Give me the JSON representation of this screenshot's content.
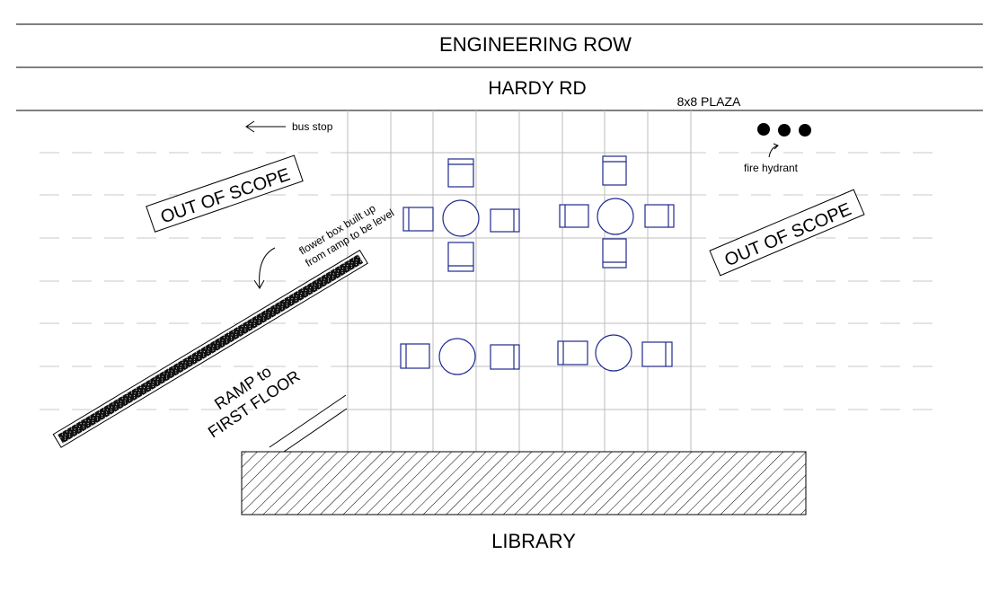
{
  "streets": {
    "top": "ENGINEERING ROW",
    "middle": "HARDY RD"
  },
  "plaza_label": "8x8 PLAZA",
  "bus_stop_label": "bus stop",
  "fire_hydrant_label": "fire hydrant",
  "out_of_scope_left": "OUT OF SCOPE",
  "out_of_scope_right": "OUT OF SCOPE",
  "flower_box_note": {
    "line1": "flower box built up",
    "line2": "from ramp to be level"
  },
  "ramp_label": {
    "line1": "RAMP to",
    "line2": "FIRST FLOOR"
  },
  "building_label": "LIBRARY",
  "colors": {
    "line": "#000000",
    "grid": "#bdbdbd",
    "furniture": "#1e2a8c",
    "dashes": "#c8c8c8"
  },
  "icons": [
    "left-arrow-icon",
    "curved-arrow-icon",
    "fire-hydrant-icon"
  ]
}
